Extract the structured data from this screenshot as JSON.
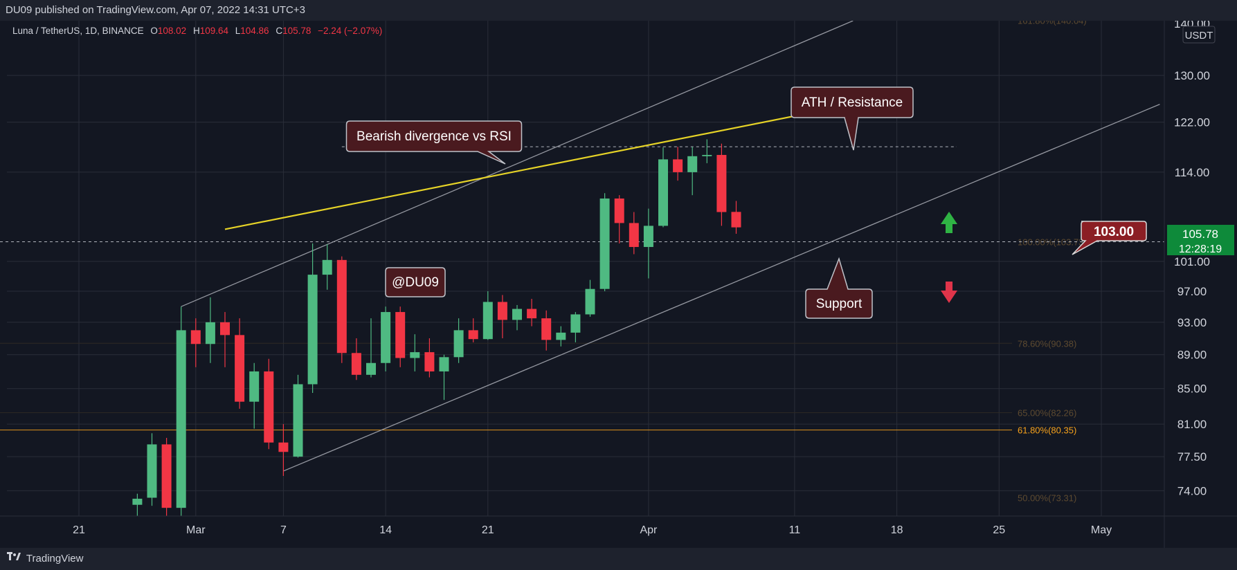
{
  "header": {
    "published": "DU09 published on TradingView.com, Apr 07, 2022 14:31 UTC+3"
  },
  "legend": {
    "symbol": "Luna / TetherUS, 1D, BINANCE",
    "o_label": "O",
    "o": "108.02",
    "h_label": "H",
    "h": "109.64",
    "l_label": "L",
    "l": "104.86",
    "c_label": "C",
    "c": "105.78",
    "change": "−2.24 (−2.07%)"
  },
  "footer": {
    "brand": "TradingView"
  },
  "colors": {
    "background": "#131722",
    "up": "#26a69a",
    "up_body": "#4fba82",
    "down": "#f23645",
    "grid": "#2a2e39",
    "trendline": "#9598a1",
    "divergence": "#e6d327",
    "fib": "#f7a21b",
    "callout_bg": "#4a1a1f",
    "callout_border": "#c0c3ca",
    "price_tag": "#0e8a3a",
    "price_box": "#8b1e24"
  },
  "chart_data": {
    "type": "candlestick",
    "symbol": "Luna / TetherUS",
    "interval": "1D",
    "exchange": "BINANCE",
    "price_axis_unit": "USDT",
    "ylim": [
      71.5,
      140
    ],
    "y_ticks": [
      74.0,
      77.5,
      81.0,
      85.0,
      89.0,
      93.0,
      97.0,
      101.0,
      114.0,
      122.0,
      130.0
    ],
    "y_tick_labels": [
      "74.00",
      "77.50",
      "81.00",
      "85.00",
      "89.00",
      "93.00",
      "97.00",
      "101.00",
      "114.00",
      "122.00",
      "130.00"
    ],
    "top_partial_tick": "140.00",
    "x_ticks": [
      {
        "label": "21",
        "date": "2022-02-21"
      },
      {
        "label": "Mar",
        "date": "2022-03-01"
      },
      {
        "label": "7",
        "date": "2022-03-07"
      },
      {
        "label": "14",
        "date": "2022-03-14"
      },
      {
        "label": "21",
        "date": "2022-03-21"
      },
      {
        "label": "Apr",
        "date": "2022-04-01"
      },
      {
        "label": "11",
        "date": "2022-04-11"
      },
      {
        "label": "18",
        "date": "2022-04-18"
      },
      {
        "label": "25",
        "date": "2022-04-25"
      },
      {
        "label": "May",
        "date": "2022-05-02"
      }
    ],
    "candles": [
      {
        "date": "2022-02-25",
        "o": 72.6,
        "h": 73.7,
        "l": 71.5,
        "c": 73.2
      },
      {
        "date": "2022-02-26",
        "o": 73.3,
        "h": 80.0,
        "l": 72.5,
        "c": 78.8
      },
      {
        "date": "2022-02-27",
        "o": 78.8,
        "h": 79.5,
        "l": 71.5,
        "c": 72.3
      },
      {
        "date": "2022-02-28",
        "o": 72.3,
        "h": 95.0,
        "l": 71.5,
        "c": 92.0
      },
      {
        "date": "2022-03-01",
        "o": 92.0,
        "h": 93.5,
        "l": 87.5,
        "c": 90.3
      },
      {
        "date": "2022-03-02",
        "o": 90.3,
        "h": 96.2,
        "l": 88.0,
        "c": 93.0
      },
      {
        "date": "2022-03-03",
        "o": 93.0,
        "h": 94.3,
        "l": 87.5,
        "c": 91.4
      },
      {
        "date": "2022-03-04",
        "o": 91.4,
        "h": 93.5,
        "l": 82.7,
        "c": 83.5
      },
      {
        "date": "2022-03-05",
        "o": 83.5,
        "h": 88.0,
        "l": 80.5,
        "c": 87.0
      },
      {
        "date": "2022-03-06",
        "o": 87.0,
        "h": 88.5,
        "l": 78.3,
        "c": 79.0
      },
      {
        "date": "2022-03-07",
        "o": 79.0,
        "h": 81.0,
        "l": 75.5,
        "c": 78.0
      },
      {
        "date": "2022-03-08",
        "o": 77.5,
        "h": 86.6,
        "l": 77.4,
        "c": 85.5
      },
      {
        "date": "2022-03-09",
        "o": 85.5,
        "h": 103.5,
        "l": 84.5,
        "c": 99.2
      },
      {
        "date": "2022-03-10",
        "o": 99.2,
        "h": 103.4,
        "l": 97.2,
        "c": 101.2
      },
      {
        "date": "2022-03-11",
        "o": 101.2,
        "h": 101.7,
        "l": 88.0,
        "c": 89.2
      },
      {
        "date": "2022-03-12",
        "o": 89.2,
        "h": 91.0,
        "l": 86.0,
        "c": 86.6
      },
      {
        "date": "2022-03-13",
        "o": 86.6,
        "h": 93.5,
        "l": 86.3,
        "c": 88.0
      },
      {
        "date": "2022-03-14",
        "o": 88.0,
        "h": 95.0,
        "l": 87.0,
        "c": 94.3
      },
      {
        "date": "2022-03-15",
        "o": 94.3,
        "h": 95.0,
        "l": 87.5,
        "c": 88.6
      },
      {
        "date": "2022-03-16",
        "o": 88.6,
        "h": 91.5,
        "l": 87.0,
        "c": 89.3
      },
      {
        "date": "2022-03-17",
        "o": 89.3,
        "h": 91.0,
        "l": 86.3,
        "c": 87.0
      },
      {
        "date": "2022-03-18",
        "o": 87.0,
        "h": 89.0,
        "l": 83.7,
        "c": 88.7
      },
      {
        "date": "2022-03-19",
        "o": 88.7,
        "h": 93.5,
        "l": 88.0,
        "c": 92.0
      },
      {
        "date": "2022-03-20",
        "o": 92.0,
        "h": 93.5,
        "l": 90.5,
        "c": 90.9
      },
      {
        "date": "2022-03-21",
        "o": 90.9,
        "h": 97.0,
        "l": 90.8,
        "c": 95.6
      },
      {
        "date": "2022-03-22",
        "o": 95.6,
        "h": 96.5,
        "l": 91.0,
        "c": 93.3
      },
      {
        "date": "2022-03-23",
        "o": 93.3,
        "h": 95.2,
        "l": 92.0,
        "c": 94.7
      },
      {
        "date": "2022-03-24",
        "o": 94.7,
        "h": 96.0,
        "l": 92.5,
        "c": 93.5
      },
      {
        "date": "2022-03-25",
        "o": 93.5,
        "h": 94.5,
        "l": 89.5,
        "c": 90.8
      },
      {
        "date": "2022-03-26",
        "o": 90.8,
        "h": 92.5,
        "l": 90.0,
        "c": 91.7
      },
      {
        "date": "2022-03-27",
        "o": 91.7,
        "h": 94.3,
        "l": 90.5,
        "c": 94.0
      },
      {
        "date": "2022-03-28",
        "o": 94.0,
        "h": 98.5,
        "l": 93.7,
        "c": 97.3
      },
      {
        "date": "2022-03-29",
        "o": 97.3,
        "h": 110.8,
        "l": 97.0,
        "c": 110.0
      },
      {
        "date": "2022-03-30",
        "o": 110.0,
        "h": 110.5,
        "l": 103.5,
        "c": 106.4
      },
      {
        "date": "2022-03-31",
        "o": 106.4,
        "h": 108.0,
        "l": 102.0,
        "c": 103.0
      },
      {
        "date": "2022-04-01",
        "o": 103.0,
        "h": 108.5,
        "l": 98.7,
        "c": 106.0
      },
      {
        "date": "2022-04-02",
        "o": 106.0,
        "h": 117.9,
        "l": 105.8,
        "c": 116.0
      },
      {
        "date": "2022-04-03",
        "o": 116.0,
        "h": 118.0,
        "l": 112.7,
        "c": 114.0
      },
      {
        "date": "2022-04-04",
        "o": 114.0,
        "h": 118.0,
        "l": 110.5,
        "c": 116.5
      },
      {
        "date": "2022-04-05",
        "o": 116.5,
        "h": 119.2,
        "l": 115.4,
        "c": 116.7
      },
      {
        "date": "2022-04-06",
        "o": 116.7,
        "h": 118.5,
        "l": 106.0,
        "c": 108.0
      },
      {
        "date": "2022-04-07",
        "o": 108.02,
        "h": 109.64,
        "l": 104.86,
        "c": 105.78
      }
    ],
    "current_price": "105.78",
    "countdown": "12:28:19",
    "price_box": "103.00",
    "fib_levels": [
      {
        "label": "161.80%(140.04)",
        "value": 140.04
      },
      {
        "label": "100.00%(103.73)",
        "value": 103.73
      },
      {
        "label": "78.60%(90.38)",
        "value": 90.38
      },
      {
        "label": "65.00%(82.26)",
        "value": 82.26
      },
      {
        "label": "61.80%(80.35)",
        "value": 80.35
      },
      {
        "label": "50.00%(73.31)",
        "value": 73.31
      }
    ],
    "ath_level": 118.0,
    "support_dashed_level": 103.73,
    "channel_upper": [
      {
        "date": "2022-02-28",
        "y": 95.0
      },
      {
        "date": "2022-04-15",
        "y": 140.0
      }
    ],
    "channel_lower": [
      {
        "date": "2022-03-07",
        "y": 76.0
      },
      {
        "date": "2022-05-06",
        "y": 125.0
      }
    ],
    "divergence_line": [
      {
        "date": "2022-03-03",
        "y": 105.5
      },
      {
        "date": "2022-04-13",
        "y": 124.0
      }
    ],
    "annotations": [
      {
        "text": "Bearish divergence vs RSI"
      },
      {
        "text": "ATH / Resistance"
      },
      {
        "text": "@DU09"
      },
      {
        "text": "Support"
      }
    ]
  }
}
